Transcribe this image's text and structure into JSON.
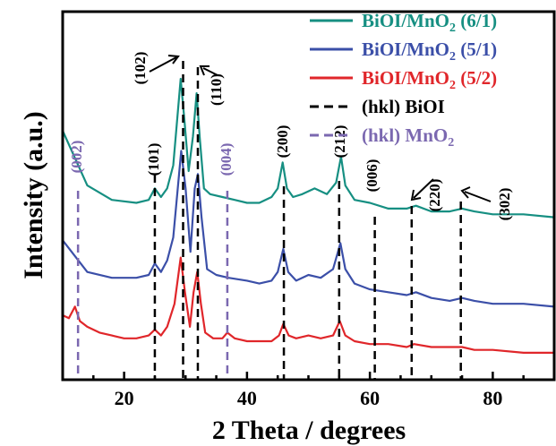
{
  "chart_data": {
    "type": "line",
    "xlabel": "2 Theta / degrees",
    "ylabel": "Intensity (a.u.)",
    "xlim": [
      10,
      90
    ],
    "xticks": [
      "20",
      "40",
      "60",
      "80"
    ],
    "y_ticks_shown": false,
    "grid": false,
    "legend_position": "top-right",
    "legend": [
      {
        "label": "BiOI/MnO",
        "sub": "2",
        "suffix": " (6/1)",
        "color": "#168f82",
        "style": "solid"
      },
      {
        "label": "BiOI/MnO",
        "sub": "2",
        "suffix": " (5/1)",
        "color": "#3b4fa8",
        "style": "solid"
      },
      {
        "label": "BiOI/MnO",
        "sub": "2",
        "suffix": " (5/2)",
        "color": "#e0262a",
        "style": "solid"
      },
      {
        "label": "(hkl) BiOI",
        "sub": "",
        "suffix": "",
        "color": "#000000",
        "style": "dashed"
      },
      {
        "label": "(hkl) MnO",
        "sub": "2",
        "suffix": "",
        "color": "#7b68b0",
        "style": "dashed"
      }
    ],
    "series": [
      {
        "name": "BiOI/MnO2 (6/1)",
        "color": "#168f82",
        "x": [
          10,
          14,
          18,
          22,
          24,
          25,
          26,
          27,
          28,
          29.2,
          29.8,
          30.5,
          31.2,
          31.8,
          32.3,
          33,
          34,
          36,
          38,
          40,
          42,
          44,
          45,
          45.8,
          46.5,
          47.5,
          49,
          51,
          53,
          54.5,
          55.3,
          56,
          57.5,
          60,
          63,
          66,
          67.5,
          70,
          73,
          75,
          77,
          80,
          85,
          90
        ],
        "y": [
          0.82,
          0.63,
          0.58,
          0.57,
          0.58,
          0.62,
          0.59,
          0.62,
          0.7,
          1.0,
          0.86,
          0.68,
          0.8,
          0.95,
          0.8,
          0.62,
          0.6,
          0.59,
          0.58,
          0.57,
          0.57,
          0.59,
          0.62,
          0.71,
          0.62,
          0.59,
          0.6,
          0.62,
          0.6,
          0.64,
          0.73,
          0.63,
          0.58,
          0.57,
          0.55,
          0.55,
          0.56,
          0.54,
          0.54,
          0.55,
          0.54,
          0.53,
          0.53,
          0.52
        ]
      },
      {
        "name": "BiOI/MnO2 (5/1)",
        "color": "#3b4fa8",
        "x": [
          10,
          14,
          18,
          22,
          24,
          25,
          26,
          27,
          28,
          29.3,
          30,
          30.8,
          31.5,
          32,
          32.6,
          33.5,
          35,
          37,
          40,
          42,
          44,
          45,
          45.9,
          46.7,
          48,
          50,
          52,
          54,
          55.2,
          56,
          57.5,
          60,
          63,
          66,
          67.5,
          70,
          73,
          75,
          77,
          80,
          85,
          90
        ],
        "y": [
          0.44,
          0.33,
          0.31,
          0.31,
          0.32,
          0.36,
          0.33,
          0.37,
          0.45,
          0.75,
          0.62,
          0.4,
          0.62,
          0.67,
          0.52,
          0.34,
          0.32,
          0.31,
          0.3,
          0.29,
          0.3,
          0.33,
          0.41,
          0.33,
          0.3,
          0.32,
          0.31,
          0.34,
          0.43,
          0.34,
          0.29,
          0.27,
          0.26,
          0.25,
          0.26,
          0.24,
          0.23,
          0.24,
          0.23,
          0.22,
          0.22,
          0.21
        ]
      },
      {
        "name": "BiOI/MnO2 (5/2)",
        "color": "#e0262a",
        "x": [
          10,
          11,
          12,
          12.8,
          14,
          16,
          18,
          20,
          22,
          24,
          25,
          26,
          27,
          28.2,
          29.2,
          29.9,
          30.7,
          31.3,
          31.9,
          32.5,
          33.2,
          34.5,
          36,
          36.8,
          38,
          40,
          42,
          44,
          45.2,
          45.9,
          46.8,
          48,
          50,
          52,
          54,
          55.1,
          56,
          57.5,
          60,
          63,
          66,
          67.2,
          70,
          73,
          75,
          77,
          80,
          85,
          90
        ],
        "y": [
          0.18,
          0.17,
          0.21,
          0.16,
          0.14,
          0.12,
          0.11,
          0.1,
          0.1,
          0.11,
          0.13,
          0.11,
          0.14,
          0.22,
          0.38,
          0.26,
          0.14,
          0.26,
          0.33,
          0.22,
          0.12,
          0.1,
          0.1,
          0.12,
          0.1,
          0.09,
          0.09,
          0.09,
          0.11,
          0.15,
          0.11,
          0.1,
          0.11,
          0.1,
          0.11,
          0.16,
          0.11,
          0.09,
          0.08,
          0.08,
          0.07,
          0.08,
          0.07,
          0.07,
          0.07,
          0.06,
          0.06,
          0.05,
          0.05
        ]
      }
    ],
    "reference_lines": [
      {
        "x": 12.5,
        "hkl": "(002)",
        "phase": "MnO2",
        "color": "#7b68b0"
      },
      {
        "x": 25.0,
        "hkl": "(101)",
        "phase": "BiOI",
        "color": "#000000"
      },
      {
        "x": 29.6,
        "hkl": "(102)",
        "phase": "BiOI",
        "color": "#000000"
      },
      {
        "x": 32.0,
        "hkl": "(110)",
        "phase": "BiOI",
        "color": "#000000"
      },
      {
        "x": 36.8,
        "hkl": "(004)",
        "phase": "MnO2",
        "color": "#7b68b0"
      },
      {
        "x": 46.0,
        "hkl": "(200)",
        "phase": "BiOI",
        "color": "#000000"
      },
      {
        "x": 55.0,
        "hkl": "(212)",
        "phase": "BiOI",
        "color": "#000000"
      },
      {
        "x": 60.8,
        "hkl": "(006)",
        "phase": "BiOI",
        "color": "#000000"
      },
      {
        "x": 66.8,
        "hkl": "(220)",
        "phase": "BiOI",
        "color": "#000000"
      },
      {
        "x": 74.8,
        "hkl": "(302)",
        "phase": "BiOI",
        "color": "#000000"
      }
    ]
  }
}
